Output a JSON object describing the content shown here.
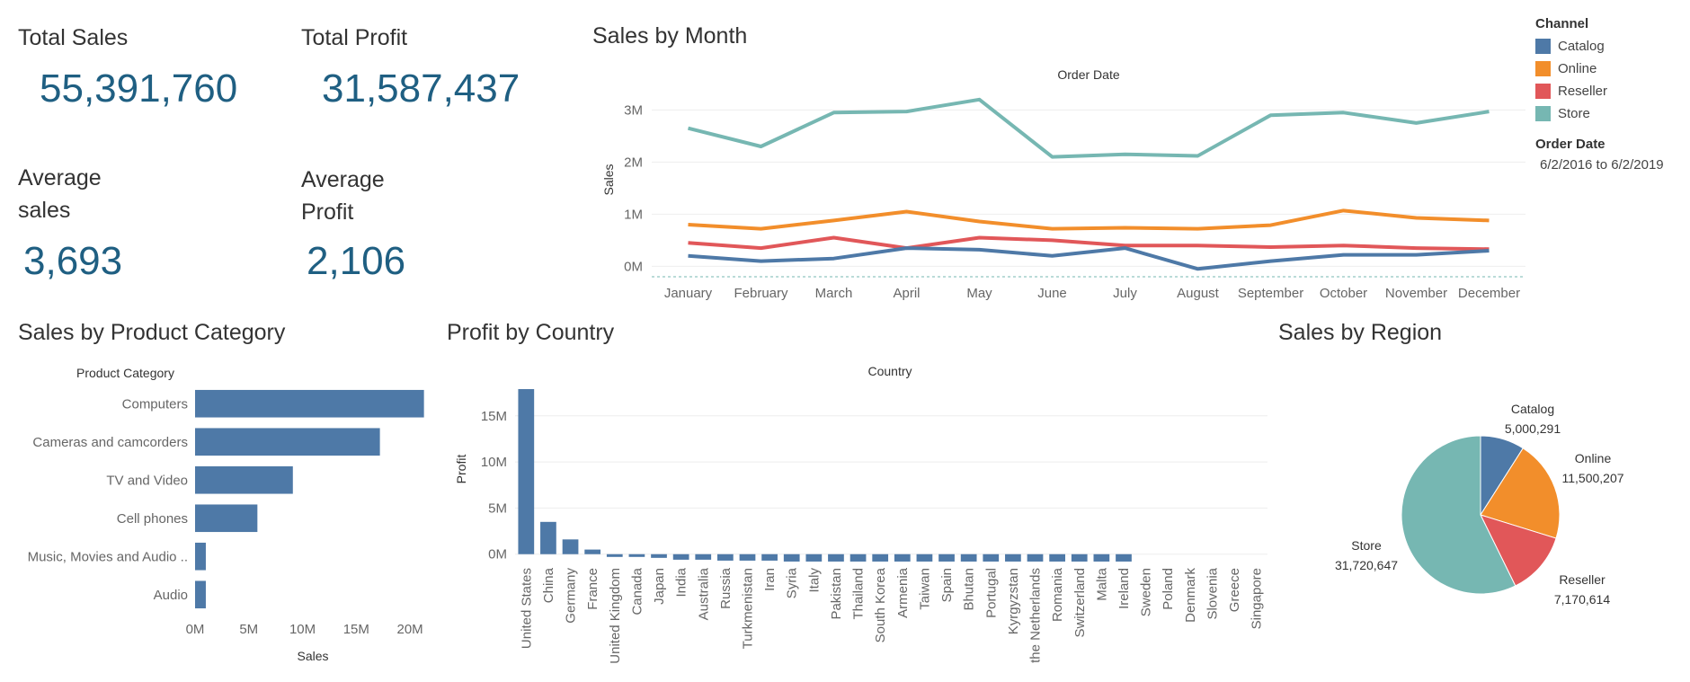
{
  "kpis": {
    "total_sales_label": "Total Sales",
    "total_sales_value": "55,391,760",
    "total_profit_label": "Total Profit",
    "total_profit_value": "31,587,437",
    "avg_sales_label_1": "Average",
    "avg_sales_label_2": "sales",
    "avg_sales_value": "3,693",
    "avg_profit_label_1": "Average",
    "avg_profit_label_2": "Profit",
    "avg_profit_value": "2,106"
  },
  "legend": {
    "title": "Channel",
    "items": [
      {
        "label": "Catalog",
        "color": "#4e79a7"
      },
      {
        "label": "Online",
        "color": "#f28e2b"
      },
      {
        "label": "Reseller",
        "color": "#e15759"
      },
      {
        "label": "Store",
        "color": "#76b7b2"
      }
    ]
  },
  "filter": {
    "title": "Order Date",
    "value": "6/2/2016 to 6/2/2019"
  },
  "chart_data": [
    {
      "type": "line",
      "title": "Sales by Month",
      "header": "Order Date",
      "ylabel": "Sales",
      "xlabel": "",
      "ylim": [
        -0.2,
        3.3
      ],
      "y_ticks": [
        0,
        1,
        2,
        3
      ],
      "y_tick_labels": [
        "0M",
        "1M",
        "2M",
        "3M"
      ],
      "categories": [
        "January",
        "February",
        "March",
        "April",
        "May",
        "June",
        "July",
        "August",
        "September",
        "October",
        "November",
        "December"
      ],
      "series": [
        {
          "name": "Store",
          "color": "#76b7b2",
          "values": [
            2.65,
            2.3,
            2.95,
            2.97,
            3.2,
            2.1,
            2.15,
            2.12,
            2.9,
            2.95,
            2.75,
            2.97
          ]
        },
        {
          "name": "Online",
          "color": "#f28e2b",
          "values": [
            0.8,
            0.72,
            0.88,
            1.05,
            0.86,
            0.72,
            0.74,
            0.72,
            0.79,
            1.07,
            0.93,
            0.88
          ]
        },
        {
          "name": "Reseller",
          "color": "#e15759",
          "values": [
            0.45,
            0.35,
            0.55,
            0.35,
            0.55,
            0.5,
            0.4,
            0.4,
            0.37,
            0.4,
            0.35,
            0.33
          ]
        },
        {
          "name": "Catalog",
          "color": "#4e79a7",
          "values": [
            0.2,
            0.1,
            0.15,
            0.35,
            0.32,
            0.2,
            0.35,
            -0.05,
            0.1,
            0.22,
            0.22,
            0.3
          ]
        }
      ]
    },
    {
      "type": "bar",
      "orientation": "horizontal",
      "title": "Sales by Product Category",
      "header": "Product Category",
      "xlabel": "Sales",
      "ylabel": "",
      "xlim": [
        0,
        22
      ],
      "x_ticks": [
        0,
        5,
        10,
        15,
        20
      ],
      "x_tick_labels": [
        "0M",
        "5M",
        "10M",
        "15M",
        "20M"
      ],
      "categories": [
        "Computers",
        "Cameras and camcorders",
        "TV and Video",
        "Cell phones",
        "Music, Movies and Audio ..",
        "Audio"
      ],
      "values": [
        21.3,
        17.2,
        9.1,
        5.8,
        1.0,
        1.0
      ],
      "color": "#4e79a7"
    },
    {
      "type": "bar",
      "title": "Profit by Country",
      "header": "Country",
      "ylabel": "Profit",
      "xlabel": "",
      "ylim": [
        -1,
        18
      ],
      "y_ticks": [
        0,
        5,
        10,
        15
      ],
      "y_tick_labels": [
        "0M",
        "5M",
        "10M",
        "15M"
      ],
      "categories": [
        "United States",
        "China",
        "Germany",
        "France",
        "United Kingdom",
        "Canada",
        "Japan",
        "India",
        "Australia",
        "Russia",
        "Turkmenistan",
        "Iran",
        "Syria",
        "Italy",
        "Pakistan",
        "Thailand",
        "South Korea",
        "Armenia",
        "Taiwan",
        "Spain",
        "Bhutan",
        "Portugal",
        "Kyrgyzstan",
        "the Netherlands",
        "Romania",
        "Switzerland",
        "Malta",
        "Ireland",
        "Sweden",
        "Poland",
        "Denmark",
        "Slovenia",
        "Greece",
        "Singapore"
      ],
      "values": [
        17.9,
        3.5,
        1.6,
        0.5,
        -0.3,
        -0.3,
        -0.4,
        -0.6,
        -0.6,
        -0.7,
        -0.7,
        -0.7,
        -0.8,
        -0.8,
        -0.8,
        -0.8,
        -0.8,
        -0.8,
        -0.8,
        -0.8,
        -0.8,
        -0.8,
        -0.8,
        -0.8,
        -0.8,
        -0.8,
        -0.8,
        -0.8,
        0,
        0,
        0,
        0,
        0,
        0
      ],
      "color": "#4e79a7"
    },
    {
      "type": "pie",
      "title": "Sales by Region",
      "slices": [
        {
          "label": "Catalog",
          "value": 5000291,
          "value_label": "5,000,291",
          "color": "#4e79a7"
        },
        {
          "label": "Online",
          "value": 11500207,
          "value_label": "11,500,207",
          "color": "#f28e2b"
        },
        {
          "label": "Reseller",
          "value": 7170614,
          "value_label": "7,170,614",
          "color": "#e15759"
        },
        {
          "label": "Store",
          "value": 31720647,
          "value_label": "31,720,647",
          "color": "#76b7b2"
        }
      ]
    }
  ]
}
